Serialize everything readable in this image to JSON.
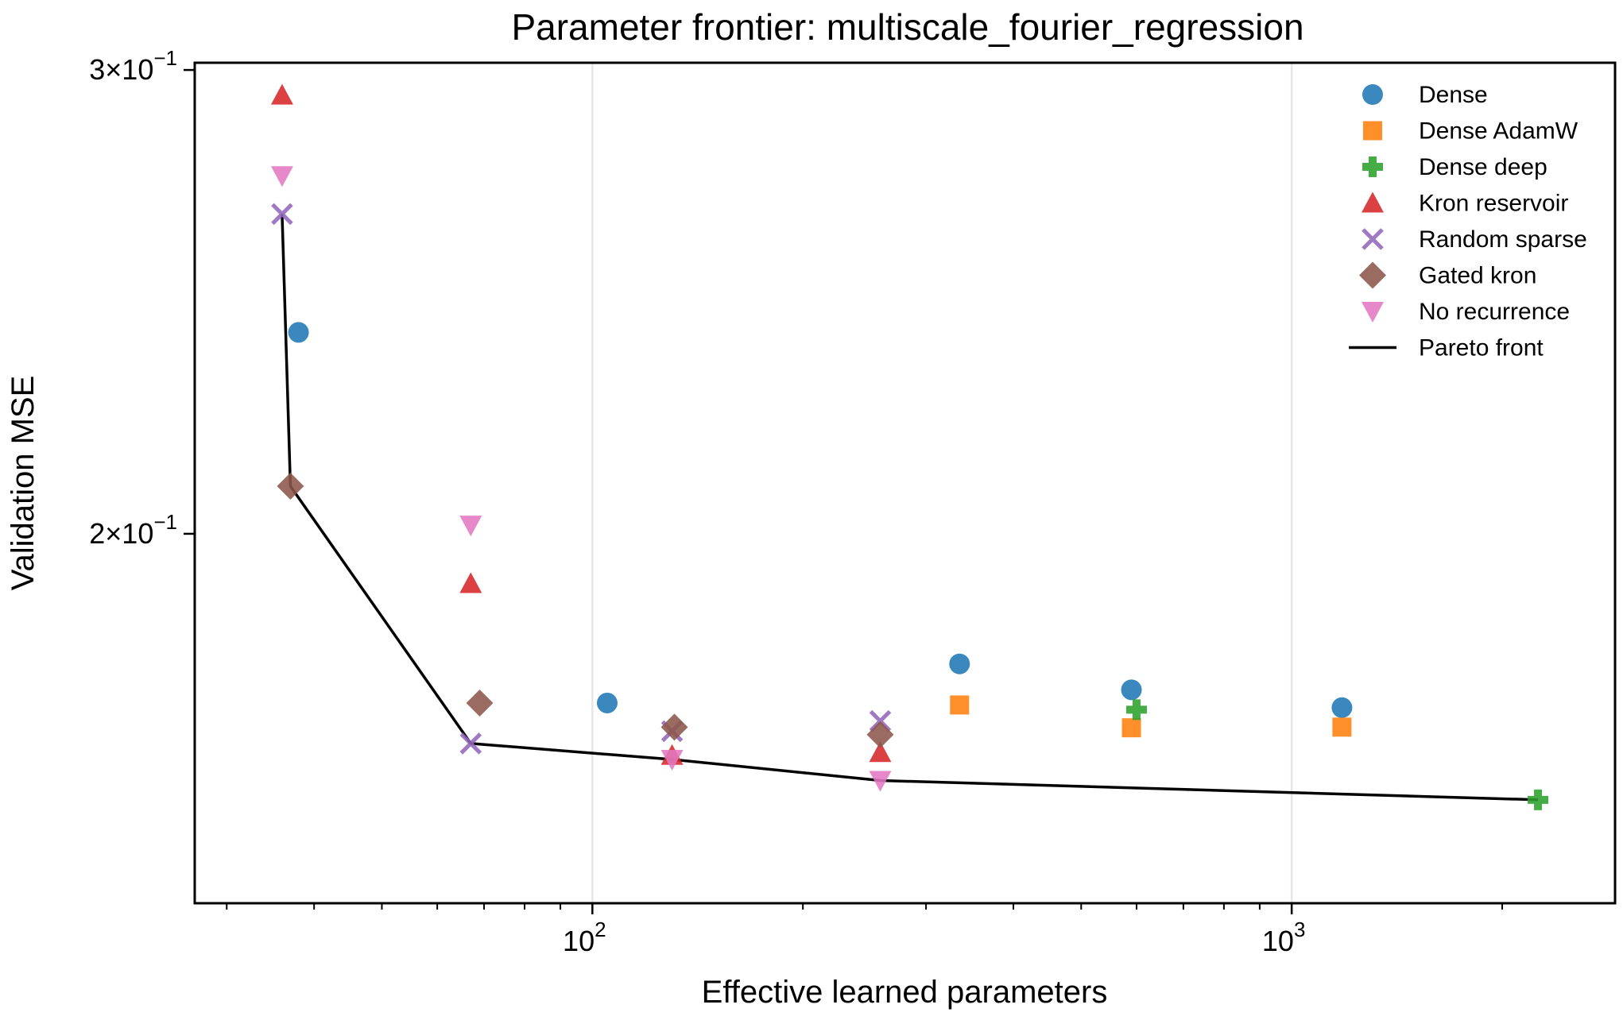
{
  "chart_data": {
    "type": "scatter",
    "title": "Parameter frontier: multiscale_fourier_regression",
    "xlabel": "Effective learned parameters",
    "ylabel": "Validation MSE",
    "xscale": "log",
    "yscale": "log",
    "xlim": [
      27,
      2900
    ],
    "ylim": [
      0.1448,
      0.3019
    ],
    "x_ticks": [
      {
        "value": 100,
        "base": "10",
        "exp": "2"
      },
      {
        "value": 1000,
        "base": "10",
        "exp": "3"
      }
    ],
    "y_ticks": [
      {
        "value": 0.2,
        "mant": "2",
        "exp": "−1"
      },
      {
        "value": 0.3,
        "mant": "3",
        "exp": "−1"
      }
    ],
    "grid": "vertical major",
    "legend_position": "top-right",
    "series": [
      {
        "name": "Dense",
        "marker": "circle",
        "color": "#1f77b4",
        "points": [
          [
            38,
            0.2385
          ],
          [
            105,
            0.1725
          ],
          [
            335,
            0.1785
          ],
          [
            590,
            0.1745
          ],
          [
            1180,
            0.1718
          ]
        ]
      },
      {
        "name": "Dense AdamW",
        "marker": "square",
        "color": "#ff7f0e",
        "points": [
          [
            335,
            0.1722
          ],
          [
            590,
            0.1688
          ],
          [
            1180,
            0.1689
          ]
        ]
      },
      {
        "name": "Dense deep",
        "marker": "plus",
        "color": "#2ca02c",
        "points": [
          [
            600,
            0.1715
          ],
          [
            2250,
            0.1585
          ]
        ]
      },
      {
        "name": "Kron reservoir",
        "marker": "triangle-up",
        "color": "#d62728",
        "points": [
          [
            36,
            0.2935
          ],
          [
            67,
            0.1915
          ],
          [
            130,
            0.1648
          ],
          [
            258,
            0.1652
          ]
        ]
      },
      {
        "name": "Random sparse",
        "marker": "x",
        "color": "#9467bd",
        "points": [
          [
            36,
            0.2645
          ],
          [
            67,
            0.1665
          ],
          [
            130,
            0.1683
          ],
          [
            258,
            0.1698
          ]
        ]
      },
      {
        "name": "Gated kron",
        "marker": "diamond",
        "color": "#8c564b",
        "points": [
          [
            37,
            0.2085
          ],
          [
            69,
            0.1725
          ],
          [
            131,
            0.1689
          ],
          [
            258,
            0.1678
          ]
        ]
      },
      {
        "name": "No recurrence",
        "marker": "triangle-down",
        "color": "#e377c2",
        "points": [
          [
            36,
            0.2735
          ],
          [
            67,
            0.2015
          ],
          [
            130,
            0.1642
          ],
          [
            258,
            0.1612
          ]
        ]
      }
    ],
    "pareto_front": {
      "name": "Pareto front",
      "color": "#000000",
      "points": [
        [
          36,
          0.2645
        ],
        [
          37,
          0.2085
        ],
        [
          67,
          0.1665
        ],
        [
          130,
          0.1642
        ],
        [
          258,
          0.1612
        ],
        [
          2250,
          0.1585
        ]
      ]
    }
  }
}
